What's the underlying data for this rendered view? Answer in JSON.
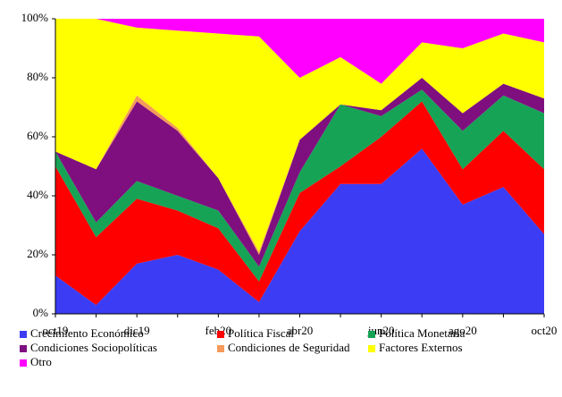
{
  "chart_data": {
    "type": "stacked-area",
    "categories": [
      "oct19",
      null,
      "dic19",
      null,
      "feb20",
      null,
      "abr20",
      null,
      "jun20",
      null,
      "ago20",
      null,
      "oct20"
    ],
    "series": [
      {
        "name": "Crecimiento Económico",
        "color": "#3c3cf5",
        "values": [
          13,
          3,
          17,
          20,
          15,
          4,
          28,
          44,
          44,
          56,
          37,
          43,
          27
        ]
      },
      {
        "name": "Política Fiscal",
        "color": "#ff0000",
        "values": [
          37,
          23,
          22,
          15,
          14,
          7,
          13,
          6,
          16,
          16,
          12,
          19,
          22
        ]
      },
      {
        "name": "Política Monetaria",
        "color": "#17a356",
        "values": [
          5,
          5,
          6,
          5,
          6,
          5,
          7,
          21,
          7,
          4,
          13,
          12,
          19
        ]
      },
      {
        "name": "Condiciones Sociopolíticas",
        "color": "#7f0f7f",
        "values": [
          0,
          18,
          27,
          22,
          11,
          4,
          11,
          0,
          2,
          4,
          6,
          4,
          5
        ]
      },
      {
        "name": "Condiciones de Seguridad",
        "color": "#f59a5a",
        "values": [
          0,
          0,
          2,
          1,
          0,
          1,
          0,
          0,
          0,
          0,
          0,
          0,
          0
        ]
      },
      {
        "name": "Factores Externos",
        "color": "#ffff00",
        "values": [
          45,
          51,
          23,
          33,
          49,
          73,
          21,
          16,
          9,
          12,
          22,
          17,
          19
        ]
      },
      {
        "name": "Otro",
        "color": "#ff00ff",
        "values": [
          0,
          0,
          3,
          4,
          5,
          6,
          20,
          13,
          22,
          8,
          10,
          5,
          8
        ]
      }
    ],
    "ylim": [
      0,
      100
    ],
    "yticks": [
      {
        "value": 0,
        "label": "0%"
      },
      {
        "value": 20,
        "label": "20%"
      },
      {
        "value": 40,
        "label": "40%"
      },
      {
        "value": 60,
        "label": "60%"
      },
      {
        "value": 80,
        "label": "80%"
      },
      {
        "value": 100,
        "label": "100%"
      }
    ]
  }
}
